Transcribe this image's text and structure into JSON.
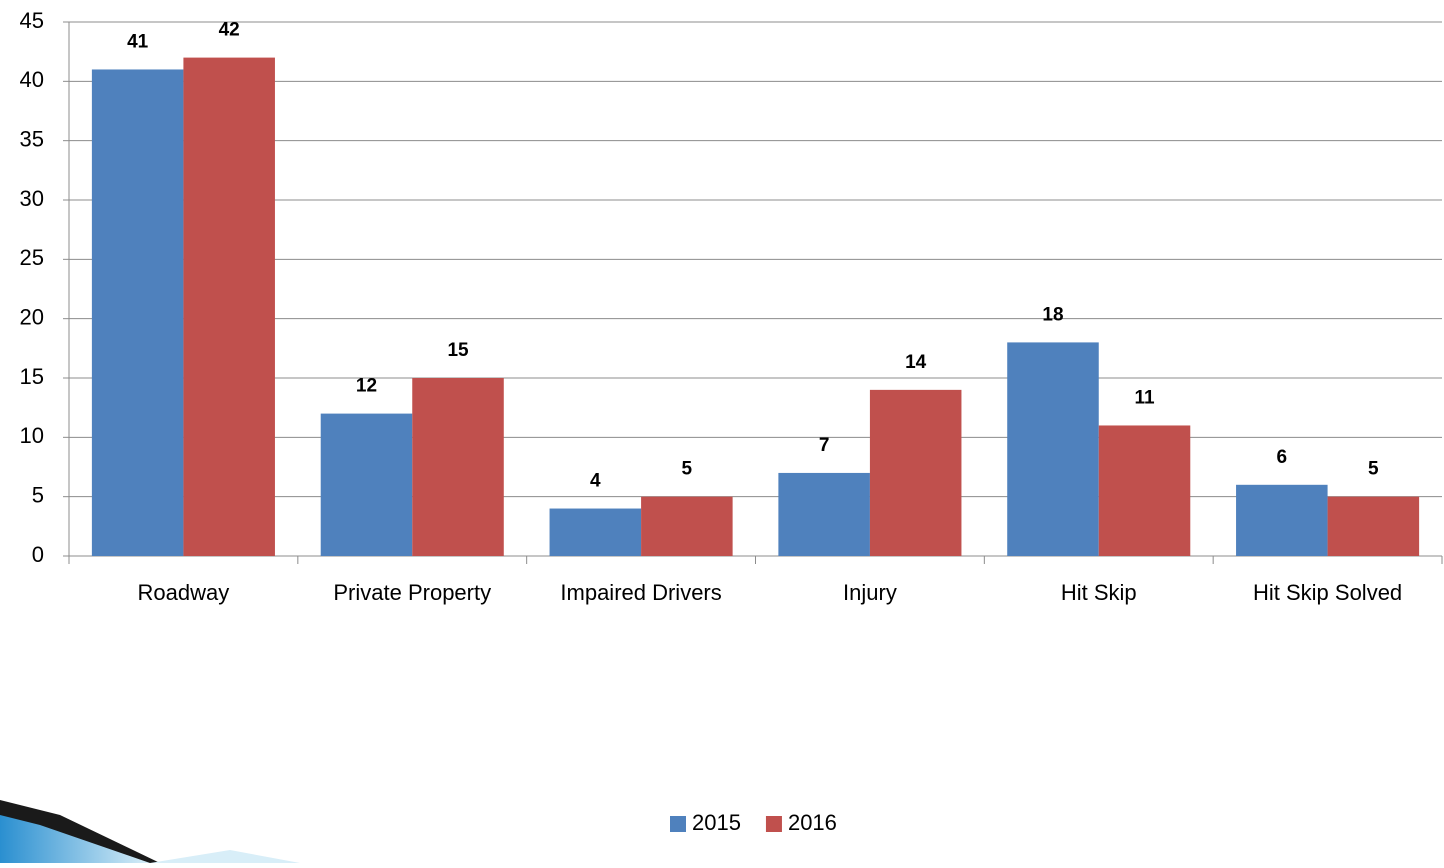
{
  "chart_data": {
    "type": "bar",
    "categories": [
      "Roadway",
      "Private Property",
      "Impaired Drivers",
      "Injury",
      "Hit Skip",
      "Hit Skip Solved"
    ],
    "series": [
      {
        "name": "2015",
        "color": "#4f81bd",
        "values": [
          41,
          12,
          4,
          7,
          18,
          6
        ]
      },
      {
        "name": "2016",
        "color": "#c0504d",
        "values": [
          42,
          15,
          5,
          14,
          11,
          5
        ]
      }
    ],
    "ylim": [
      0,
      45
    ],
    "yticks": [
      0,
      5,
      10,
      15,
      20,
      25,
      30,
      35,
      40,
      45
    ],
    "grid": true,
    "legend": "bottom"
  }
}
